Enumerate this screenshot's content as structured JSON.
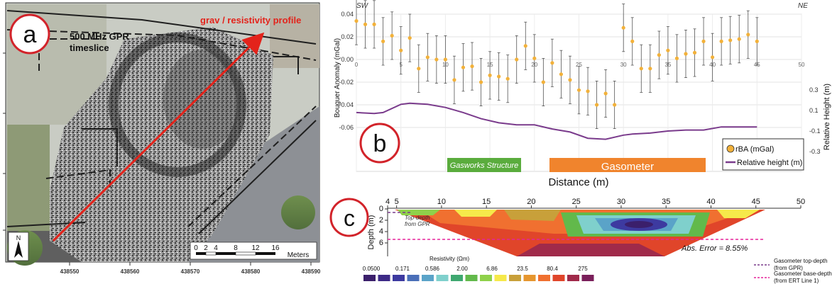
{
  "panel_a": {
    "label": "a",
    "gpr_label_line1": "500 MHz GPR",
    "gpr_label_line2": "timeslice",
    "profile_label": "grav / resistivity profile",
    "north_label": "N",
    "scale_ticks": [
      "0",
      "2",
      "4",
      "8",
      "12",
      "16"
    ],
    "scale_unit": "Meters",
    "easting_ticks": [
      "438550",
      "438560",
      "438570",
      "438580",
      "438590"
    ]
  },
  "panel_b": {
    "label": "b",
    "sw": "SW",
    "ne": "NE",
    "structure_label": "Gasworks Structure",
    "gasometer_label": "Gasometer",
    "legend": [
      "rBA (mGal)",
      "Relative height (m)"
    ],
    "colors": {
      "points": "#f2b13a",
      "line": "#7a3b8c",
      "structure": "#5aac3d",
      "gasometer": "#f0842d"
    }
  },
  "panel_c": {
    "label": "c",
    "ylabel": "Depth (m)",
    "x_ticks": [
      "4",
      "5",
      "10",
      "15",
      "20",
      "25",
      "30",
      "35",
      "40",
      "45",
      "50"
    ],
    "y_ticks": [
      "0",
      "2",
      "4",
      "6"
    ],
    "top_depth_note_line1": "Top-depth",
    "top_depth_note_line2": "from GPR",
    "abs_error": "Abs. Error = 8.55%",
    "resistivity_title": "Resistivity (Ωm)",
    "resistivity_ticks": [
      "0.0500",
      "0.171",
      "0.586",
      "2.00",
      "6.86",
      "23.5",
      "80.4",
      "275"
    ],
    "legend_top_line1": "Gasometer top-depth",
    "legend_top_line2": "(from GPR)",
    "legend_base_line1": "Gasometer base-depth",
    "legend_base_line2": "(from ERT Line 1)",
    "colorbar": [
      "#3b1f6b",
      "#3d2a86",
      "#3d3aa0",
      "#4a6fb8",
      "#5aa3c8",
      "#7fd0cc",
      "#3fa870",
      "#62b94b",
      "#8fd14a",
      "#f6e94a",
      "#c8a03a",
      "#e6962e",
      "#f07030",
      "#e0452a",
      "#a02a4a",
      "#7a1f5a"
    ]
  },
  "chart_data": {
    "type": "scatter",
    "xlabel": "Distance (m)",
    "ylabel": "Bouguer Anomaly (mGal)",
    "ylabel_right": "Relative Height (m)",
    "xlim": [
      0,
      50
    ],
    "ylim": [
      -0.06,
      0.04
    ],
    "y2lim": [
      -0.3,
      0.3
    ],
    "x_ticks": [
      0,
      5,
      10,
      15,
      20,
      25,
      30,
      35,
      40,
      45,
      50
    ],
    "y_ticks": [
      0.04,
      0.02,
      0.0,
      -0.02,
      -0.04,
      -0.06
    ],
    "y2_ticks": [
      0.3,
      0.1,
      -0.1,
      -0.3
    ],
    "series": [
      {
        "name": "rBA (mGal)",
        "x": [
          0,
          1,
          2,
          3,
          4,
          5,
          6,
          7,
          8,
          9,
          10,
          11,
          12,
          13,
          14,
          15,
          16,
          17,
          18,
          19,
          20,
          21,
          22,
          23,
          24,
          25,
          26,
          27,
          28,
          29,
          30,
          31,
          32,
          33,
          34,
          35,
          36,
          37,
          38,
          39,
          40,
          41,
          42,
          43,
          44,
          45
        ],
        "values": [
          0.034,
          0.031,
          0.031,
          0.016,
          0.021,
          0.008,
          0.019,
          -0.008,
          0.002,
          0.0,
          0.0,
          -0.018,
          -0.007,
          -0.006,
          -0.02,
          -0.014,
          -0.015,
          -0.017,
          0.0,
          0.012,
          0.001,
          -0.02,
          -0.003,
          -0.013,
          -0.018,
          -0.027,
          -0.028,
          -0.04,
          -0.03,
          -0.04,
          0.028,
          0.016,
          -0.008,
          -0.008,
          0.004,
          0.008,
          0.001,
          0.005,
          0.006,
          0.016,
          0.002,
          0.016,
          0.017,
          0.018,
          0.022,
          0.016
        ],
        "error": [
          0.021,
          0.021,
          0.021,
          0.021,
          0.021,
          0.021,
          0.021,
          0.021,
          0.021,
          0.021,
          0.021,
          0.021,
          0.021,
          0.021,
          0.021,
          0.021,
          0.021,
          0.021,
          0.021,
          0.021,
          0.021,
          0.021,
          0.021,
          0.021,
          0.021,
          0.021,
          0.021,
          0.021,
          0.021,
          0.021,
          0.021,
          0.021,
          0.021,
          0.021,
          0.021,
          0.021,
          0.021,
          0.021,
          0.021,
          0.021,
          0.021,
          0.021,
          0.021,
          0.021,
          0.021,
          0.021
        ]
      },
      {
        "name": "Relative height (m)",
        "x": [
          0,
          2,
          3,
          5,
          6,
          8,
          10,
          12,
          14,
          16,
          18,
          20,
          22,
          24,
          26,
          28,
          30,
          31,
          33,
          35,
          37,
          39,
          41,
          42,
          43,
          45
        ],
        "values": [
          0.08,
          0.07,
          0.08,
          0.16,
          0.17,
          0.16,
          0.13,
          0.08,
          0.02,
          -0.02,
          -0.04,
          -0.04,
          -0.08,
          -0.11,
          -0.17,
          -0.18,
          -0.14,
          -0.13,
          -0.12,
          -0.1,
          -0.09,
          -0.09,
          -0.06,
          -0.06,
          -0.06,
          -0.06
        ]
      }
    ],
    "annotations": [
      {
        "text": "Gasworks Structure",
        "x_range": [
          5,
          18
        ]
      },
      {
        "text": "Gasometer",
        "x_range": [
          22,
          42
        ]
      }
    ]
  }
}
